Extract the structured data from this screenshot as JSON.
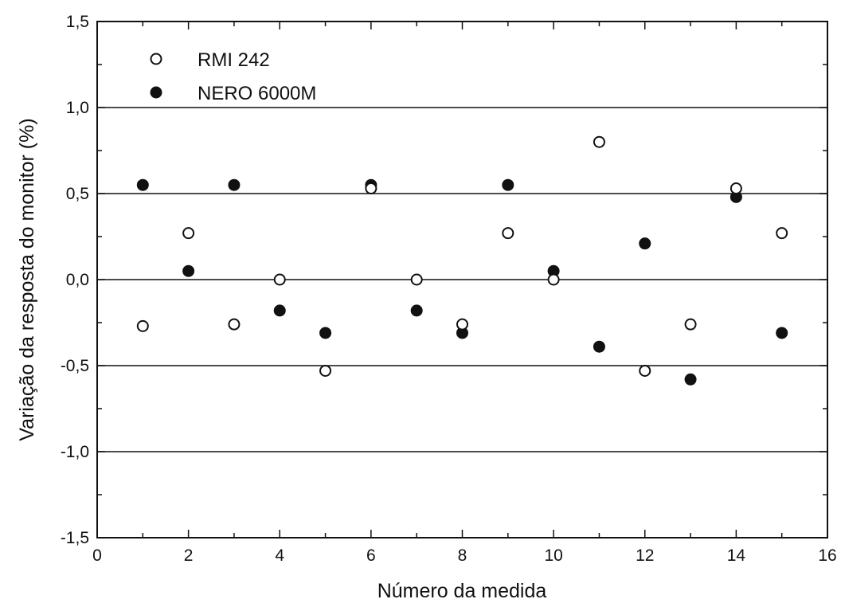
{
  "chart_data": {
    "type": "scatter",
    "title": "",
    "xlabel": "Número da medida",
    "ylabel": "Variação da resposta do monitor (%)",
    "xlim": [
      0,
      16
    ],
    "ylim": [
      -1.5,
      1.5
    ],
    "x_ticks": [
      0,
      2,
      4,
      6,
      8,
      10,
      12,
      14,
      16
    ],
    "x_tick_labels": [
      "0",
      "2",
      "4",
      "6",
      "8",
      "10",
      "12",
      "14",
      "16"
    ],
    "y_ticks": [
      -1.5,
      -1.0,
      -0.5,
      0.0,
      0.5,
      1.0,
      1.5
    ],
    "y_tick_labels": [
      "-1,5",
      "-1,0",
      "-0,5",
      "0,0",
      "0,5",
      "1,0",
      "1,5"
    ],
    "gridlines_y": [
      -1.0,
      -0.5,
      0.0,
      0.5,
      1.0
    ],
    "legend_position": "top-left",
    "series": [
      {
        "name": "RMI 242",
        "marker": "open-circle",
        "color": "#111111",
        "x": [
          1,
          2,
          3,
          4,
          5,
          6,
          7,
          8,
          9,
          10,
          11,
          12,
          13,
          14,
          15
        ],
        "y": [
          -0.27,
          0.27,
          -0.26,
          0.0,
          -0.53,
          0.53,
          0.0,
          -0.26,
          0.27,
          0.0,
          0.8,
          -0.53,
          -0.26,
          0.53,
          0.27
        ]
      },
      {
        "name": "NERO 6000M",
        "marker": "filled-circle",
        "color": "#111111",
        "x": [
          1,
          2,
          3,
          4,
          5,
          6,
          7,
          8,
          9,
          10,
          11,
          12,
          13,
          14,
          15
        ],
        "y": [
          0.55,
          0.05,
          0.55,
          -0.18,
          -0.31,
          0.55,
          -0.18,
          -0.31,
          0.55,
          0.05,
          -0.39,
          0.21,
          -0.58,
          0.48,
          -0.31
        ]
      }
    ]
  }
}
